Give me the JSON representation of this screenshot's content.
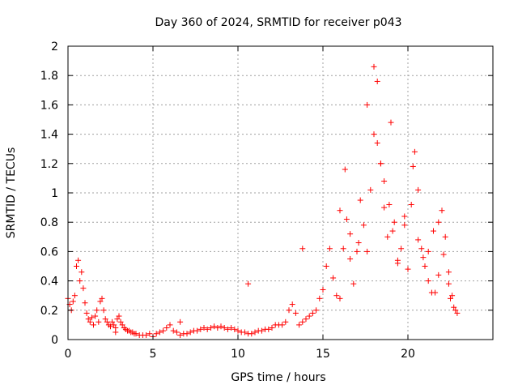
{
  "chart_data": {
    "type": "scatter",
    "title": "Day 360 of 2024, SRMTID for receiver p043",
    "xlabel": "GPS time / hours",
    "ylabel": "SRMTID / TECUs",
    "xlim": [
      0,
      25
    ],
    "ylim": [
      0,
      2
    ],
    "xticks": [
      0,
      5,
      10,
      15,
      20
    ],
    "xtick_labels": [
      "0",
      "5",
      "10",
      "15",
      "20"
    ],
    "yticks": [
      0,
      0.2,
      0.4,
      0.6,
      0.8,
      1,
      1.2,
      1.4,
      1.6,
      1.8,
      2
    ],
    "ytick_labels": [
      "0",
      "0.2",
      "0.4",
      "0.6",
      "0.8",
      "1",
      "1.2",
      "1.4",
      "1.6",
      "1.8",
      "2"
    ],
    "grid": true,
    "marker": "plus",
    "color": "#ff0000",
    "series": [
      {
        "name": "SRMTID",
        "x": [
          0.0,
          0.1,
          0.2,
          0.3,
          0.4,
          0.5,
          0.6,
          0.7,
          0.8,
          0.9,
          1.0,
          1.1,
          1.2,
          1.3,
          1.4,
          1.5,
          1.6,
          1.7,
          1.8,
          1.9,
          2.0,
          2.1,
          2.2,
          2.3,
          2.4,
          2.5,
          2.6,
          2.7,
          2.8,
          2.9,
          3.0,
          3.1,
          3.2,
          3.3,
          3.4,
          3.5,
          3.6,
          3.7,
          3.8,
          3.9,
          4.0,
          4.2,
          4.4,
          4.6,
          4.8,
          5.0,
          5.2,
          5.4,
          5.6,
          5.8,
          6.0,
          6.2,
          6.4,
          6.6,
          6.8,
          7.0,
          7.2,
          7.4,
          7.6,
          7.8,
          8.0,
          8.2,
          8.4,
          8.6,
          8.8,
          9.0,
          9.2,
          9.4,
          9.6,
          9.8,
          10.0,
          10.2,
          10.4,
          10.6,
          10.8,
          11.0,
          11.2,
          11.4,
          11.6,
          11.8,
          12.0,
          12.2,
          12.4,
          12.6,
          12.8,
          13.0,
          13.2,
          13.4,
          13.6,
          13.8,
          14.0,
          14.2,
          14.4,
          14.6,
          14.8,
          15.0,
          15.2,
          15.4,
          15.6,
          15.8,
          16.0,
          16.2,
          16.4,
          16.6,
          16.8,
          17.0,
          17.2,
          17.4,
          17.6,
          17.8,
          18.0,
          18.2,
          18.4,
          18.6,
          18.8,
          19.0,
          19.2,
          19.4,
          19.6,
          19.8,
          20.0,
          20.2,
          20.4,
          20.6,
          20.8,
          21.0,
          21.2,
          21.4,
          21.6,
          21.8,
          22.0,
          22.2,
          22.4,
          22.6,
          22.8
        ],
        "y": [
          0.28,
          0.24,
          0.2,
          0.26,
          0.3,
          0.5,
          0.54,
          0.4,
          0.46,
          0.35,
          0.25,
          0.18,
          0.14,
          0.12,
          0.15,
          0.1,
          0.16,
          0.2,
          0.12,
          0.26,
          0.28,
          0.2,
          0.14,
          0.12,
          0.1,
          0.09,
          0.12,
          0.1,
          0.08,
          0.14,
          0.16,
          0.12,
          0.1,
          0.08,
          0.07,
          0.06,
          0.06,
          0.05,
          0.05,
          0.04,
          0.04,
          0.03,
          0.03,
          0.03,
          0.04,
          0.02,
          0.04,
          0.05,
          0.06,
          0.08,
          0.1,
          0.06,
          0.05,
          0.03,
          0.04,
          0.04,
          0.05,
          0.06,
          0.06,
          0.07,
          0.08,
          0.07,
          0.08,
          0.09,
          0.08,
          0.09,
          0.08,
          0.07,
          0.08,
          0.07,
          0.06,
          0.05,
          0.05,
          0.04,
          0.04,
          0.05,
          0.06,
          0.06,
          0.07,
          0.07,
          0.08,
          0.1,
          0.1,
          0.1,
          0.12,
          0.2,
          0.24,
          0.18,
          0.1,
          0.12,
          0.14,
          0.16,
          0.18,
          0.2,
          0.28,
          0.34,
          0.5,
          0.62,
          0.42,
          0.3,
          0.28,
          0.62,
          0.82,
          0.55,
          0.38,
          0.6,
          0.95,
          0.78,
          0.6,
          1.02,
          1.4,
          1.76,
          1.2,
          0.9,
          0.7,
          1.48,
          0.8,
          0.54,
          0.62,
          0.78,
          0.48,
          0.92,
          1.28,
          0.68,
          0.62,
          0.5,
          0.6,
          0.32,
          0.32,
          0.44,
          0.88,
          0.7,
          0.38,
          0.3,
          0.2
        ],
        "scatter_y": [
          0.05,
          0.12,
          0.38,
          0.62,
          0.72,
          0.66,
          0.88,
          1.16,
          1.6,
          1.86,
          1.34,
          1.2,
          1.08,
          0.92,
          0.74,
          0.52,
          0.84,
          1.18,
          1.02,
          0.56,
          0.4,
          0.74,
          0.8,
          0.58,
          0.46,
          0.28,
          0.22,
          0.18
        ]
      }
    ]
  }
}
